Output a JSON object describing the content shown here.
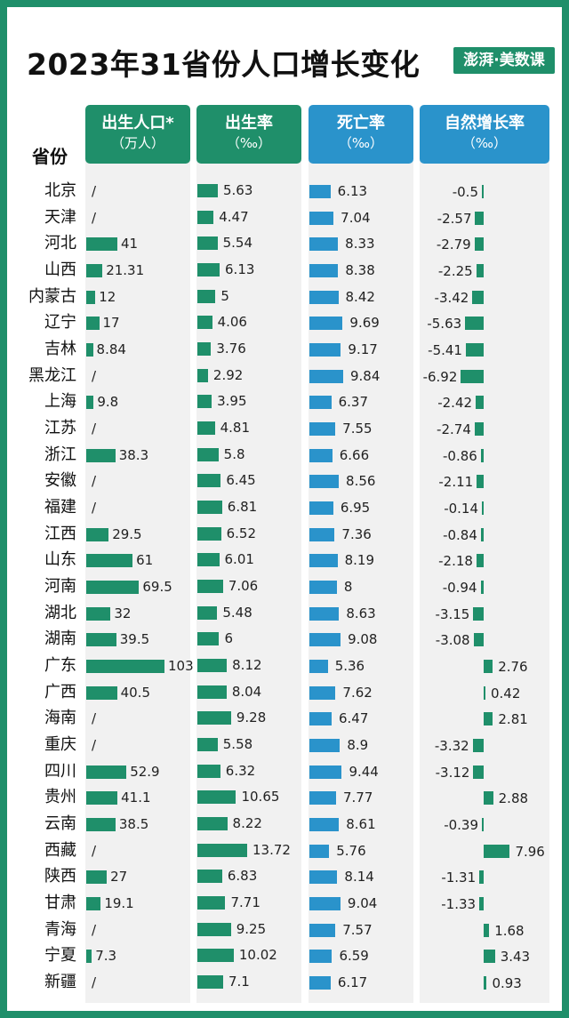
{
  "title": "2023年31省份人口增长变化",
  "logo_text": "澎湃·美数课",
  "colors": {
    "frame": "#1f8f6a",
    "green": "#1f8f6a",
    "blue": "#2a93cb",
    "colbg": "#f1f1f1"
  },
  "headers": {
    "province": "省份",
    "births": {
      "line1": "出生人口*",
      "line2": "（万人）"
    },
    "birth_rate": {
      "line1": "出生率",
      "line2": "（‰）"
    },
    "death_rate": {
      "line1": "死亡率",
      "line2": "（‰）"
    },
    "natural_growth": {
      "line1": "自然增长率",
      "line2": "（‰）"
    }
  },
  "chart_data": {
    "type": "bar",
    "title": "2023年31省份人口增长变化",
    "missing_symbol": "/",
    "categories": [
      "北京",
      "天津",
      "河北",
      "山西",
      "内蒙古",
      "辽宁",
      "吉林",
      "黑龙江",
      "上海",
      "江苏",
      "浙江",
      "安徽",
      "福建",
      "江西",
      "山东",
      "河南",
      "湖北",
      "湖南",
      "广东",
      "广西",
      "海南",
      "重庆",
      "四川",
      "贵州",
      "云南",
      "西藏",
      "陕西",
      "甘肃",
      "青海",
      "宁夏",
      "新疆"
    ],
    "series": [
      {
        "name": "出生人口*（万人）",
        "values": [
          null,
          null,
          41,
          21.31,
          12,
          17,
          8.84,
          null,
          9.8,
          null,
          38.3,
          null,
          null,
          29.5,
          61,
          69.5,
          32,
          39.5,
          103,
          40.5,
          null,
          null,
          52.9,
          41.1,
          38.5,
          null,
          27,
          19.1,
          null,
          7.3,
          null
        ]
      },
      {
        "name": "出生率（‰）",
        "values": [
          5.63,
          4.47,
          5.54,
          6.13,
          5,
          4.06,
          3.76,
          2.92,
          3.95,
          4.81,
          5.8,
          6.45,
          6.81,
          6.52,
          6.01,
          7.06,
          5.48,
          6,
          8.12,
          8.04,
          9.28,
          5.58,
          6.32,
          10.65,
          8.22,
          13.72,
          6.83,
          7.71,
          9.25,
          10.02,
          7.1
        ]
      },
      {
        "name": "死亡率（‰）",
        "values": [
          6.13,
          7.04,
          8.33,
          8.38,
          8.42,
          9.69,
          9.17,
          9.84,
          6.37,
          7.55,
          6.66,
          8.56,
          6.95,
          7.36,
          8.19,
          8,
          8.63,
          9.08,
          5.36,
          7.62,
          6.47,
          8.9,
          9.44,
          7.77,
          8.61,
          5.76,
          8.14,
          9.04,
          7.57,
          6.59,
          6.17
        ]
      },
      {
        "name": "自然增长率（‰）",
        "values": [
          -0.5,
          -2.57,
          -2.79,
          -2.25,
          -3.42,
          -5.63,
          -5.41,
          -6.92,
          -2.42,
          -2.74,
          -0.86,
          -2.11,
          -0.14,
          -0.84,
          -2.18,
          -0.94,
          -3.15,
          -3.08,
          2.76,
          0.42,
          2.81,
          -3.32,
          -3.12,
          2.88,
          -0.39,
          7.96,
          -1.31,
          -1.33,
          1.68,
          3.43,
          0.93
        ]
      }
    ]
  }
}
